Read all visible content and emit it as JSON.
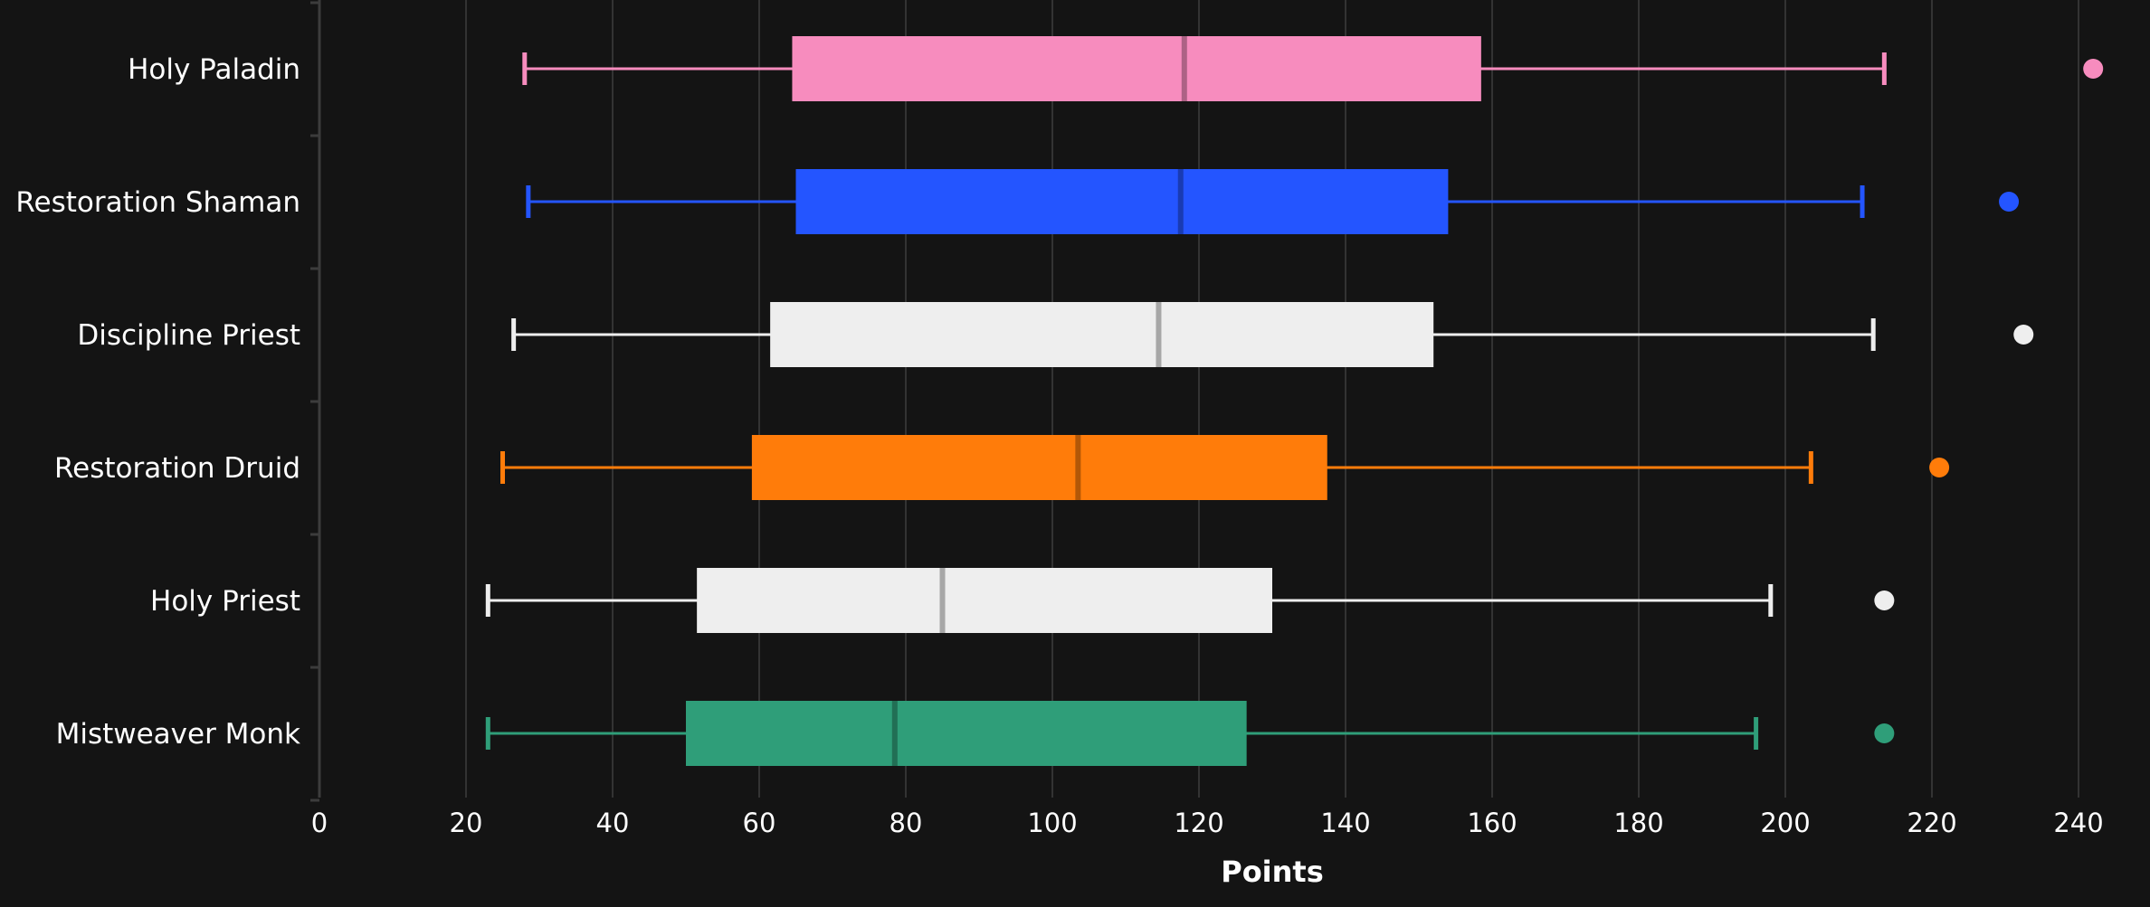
{
  "chart_data": {
    "type": "boxplot",
    "orientation": "horizontal",
    "xlabel": "Points",
    "xlim": [
      0,
      245
    ],
    "xticks": [
      0,
      20,
      40,
      60,
      80,
      100,
      120,
      140,
      160,
      180,
      200,
      220,
      240
    ],
    "grid": "vertical",
    "background": "#141414",
    "series": [
      {
        "name": "Holy Paladin",
        "color": "#f78cbe",
        "whisker_low": 28,
        "q1": 64.5,
        "median": 118,
        "q3": 158.5,
        "whisker_high": 213.5,
        "outliers": [
          242
        ]
      },
      {
        "name": "Restoration Shaman",
        "color": "#2455ff",
        "whisker_low": 28.5,
        "q1": 65,
        "median": 117.5,
        "q3": 154,
        "whisker_high": 210.5,
        "outliers": [
          230.5
        ]
      },
      {
        "name": "Discipline Priest",
        "color": "#eeeeee",
        "whisker_low": 26.5,
        "q1": 61.5,
        "median": 114.5,
        "q3": 152,
        "whisker_high": 212,
        "outliers": [
          232.5
        ]
      },
      {
        "name": "Restoration Druid",
        "color": "#ff7c0a",
        "whisker_low": 25,
        "q1": 59,
        "median": 103.5,
        "q3": 137.5,
        "whisker_high": 203.5,
        "outliers": [
          221
        ]
      },
      {
        "name": "Holy Priest",
        "color": "#eeeeee",
        "whisker_low": 23,
        "q1": 51.5,
        "median": 85,
        "q3": 130,
        "whisker_high": 198,
        "outliers": [
          213.5
        ]
      },
      {
        "name": "Mistweaver Monk",
        "color": "#2f9e79",
        "whisker_low": 23,
        "q1": 50,
        "median": 78.5,
        "q3": 126.5,
        "whisker_high": 196,
        "outliers": [
          213.5
        ]
      }
    ]
  }
}
